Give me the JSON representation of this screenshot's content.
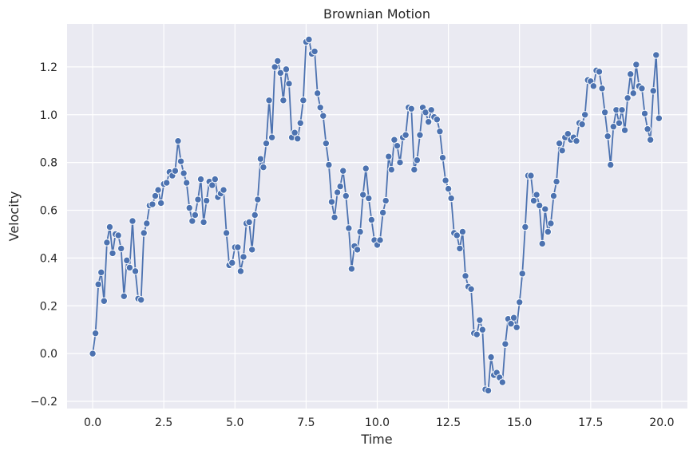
{
  "chart_data": {
    "type": "line",
    "title": "Brownian Motion",
    "xlabel": "Time",
    "ylabel": "Velocity",
    "xlim": [
      -0.9,
      20.9
    ],
    "ylim": [
      -0.23,
      1.38
    ],
    "xticks": [
      0.0,
      2.5,
      5.0,
      7.5,
      10.0,
      12.5,
      15.0,
      17.5,
      20.0
    ],
    "xtick_labels": [
      "0.0",
      "2.5",
      "5.0",
      "7.5",
      "10.0",
      "12.5",
      "15.0",
      "17.5",
      "20.0"
    ],
    "yticks": [
      -0.2,
      0.0,
      0.2,
      0.4,
      0.6,
      0.8,
      1.0,
      1.2
    ],
    "ytick_labels": [
      "−0.2",
      "0.0",
      "0.2",
      "0.4",
      "0.6",
      "0.8",
      "1.0",
      "1.2"
    ],
    "grid": true,
    "line_color": "#4c72b0",
    "background_color": "#eaeaf2",
    "x": [
      0,
      0.1,
      0.2,
      0.3,
      0.4,
      0.5,
      0.6,
      0.7,
      0.8,
      0.9,
      1.0,
      1.1,
      1.2,
      1.3,
      1.4,
      1.5,
      1.6,
      1.7,
      1.8,
      1.9,
      2.0,
      2.1,
      2.2,
      2.3,
      2.4,
      2.5,
      2.6,
      2.7,
      2.8,
      2.9,
      3.0,
      3.1,
      3.2,
      3.3,
      3.4,
      3.5,
      3.6,
      3.7,
      3.8,
      3.9,
      4.0,
      4.1,
      4.2,
      4.3,
      4.4,
      4.5,
      4.6,
      4.7,
      4.8,
      4.9,
      5.0,
      5.1,
      5.2,
      5.3,
      5.4,
      5.5,
      5.6,
      5.7,
      5.8,
      5.9,
      6.0,
      6.1,
      6.2,
      6.3,
      6.4,
      6.5,
      6.6,
      6.7,
      6.8,
      6.9,
      7.0,
      7.1,
      7.2,
      7.3,
      7.4,
      7.5,
      7.6,
      7.7,
      7.8,
      7.9,
      8.0,
      8.1,
      8.2,
      8.3,
      8.4,
      8.5,
      8.6,
      8.7,
      8.8,
      8.9,
      9.0,
      9.1,
      9.2,
      9.3,
      9.4,
      9.5,
      9.6,
      9.7,
      9.8,
      9.9,
      10.0,
      10.1,
      10.2,
      10.3,
      10.4,
      10.5,
      10.6,
      10.7,
      10.8,
      10.9,
      11.0,
      11.1,
      11.2,
      11.3,
      11.4,
      11.5,
      11.6,
      11.7,
      11.8,
      11.9,
      12.0,
      12.1,
      12.2,
      12.3,
      12.4,
      12.5,
      12.6,
      12.7,
      12.8,
      12.9,
      13.0,
      13.1,
      13.2,
      13.3,
      13.4,
      13.5,
      13.6,
      13.7,
      13.8,
      13.9,
      14.0,
      14.1,
      14.2,
      14.3,
      14.4,
      14.5,
      14.6,
      14.7,
      14.8,
      14.9,
      15.0,
      15.1,
      15.2,
      15.3,
      15.4,
      15.5,
      15.6,
      15.7,
      15.8,
      15.9,
      16.0,
      16.1,
      16.2,
      16.3,
      16.4,
      16.5,
      16.6,
      16.7,
      16.8,
      16.9,
      17.0,
      17.1,
      17.2,
      17.3,
      17.4,
      17.5,
      17.6,
      17.7,
      17.8,
      17.9,
      18.0,
      18.1,
      18.2,
      18.3,
      18.4,
      18.5,
      18.6,
      18.7,
      18.8,
      18.9,
      19.0,
      19.1,
      19.2,
      19.3,
      19.4,
      19.5,
      19.6,
      19.7,
      19.8,
      19.9
    ],
    "y": [
      0.0,
      0.085,
      0.29,
      0.34,
      0.22,
      0.465,
      0.53,
      0.42,
      0.5,
      0.495,
      0.44,
      0.24,
      0.39,
      0.36,
      0.555,
      0.345,
      0.23,
      0.225,
      0.505,
      0.545,
      0.62,
      0.625,
      0.66,
      0.685,
      0.63,
      0.71,
      0.715,
      0.76,
      0.745,
      0.765,
      0.89,
      0.805,
      0.755,
      0.715,
      0.61,
      0.555,
      0.58,
      0.645,
      0.73,
      0.55,
      0.64,
      0.72,
      0.705,
      0.73,
      0.655,
      0.67,
      0.685,
      0.505,
      0.37,
      0.38,
      0.445,
      0.445,
      0.345,
      0.405,
      0.545,
      0.55,
      0.435,
      0.58,
      0.645,
      0.815,
      0.78,
      0.88,
      1.06,
      0.905,
      1.2,
      1.225,
      1.175,
      1.06,
      1.19,
      1.13,
      0.905,
      0.925,
      0.9,
      0.965,
      1.06,
      1.305,
      1.315,
      1.255,
      1.265,
      1.09,
      1.03,
      0.995,
      0.88,
      0.79,
      0.635,
      0.57,
      0.675,
      0.7,
      0.765,
      0.66,
      0.525,
      0.355,
      0.45,
      0.435,
      0.51,
      0.665,
      0.775,
      0.65,
      0.56,
      0.475,
      0.455,
      0.475,
      0.59,
      0.64,
      0.825,
      0.77,
      0.895,
      0.87,
      0.8,
      0.905,
      0.915,
      1.03,
      1.025,
      0.77,
      0.81,
      0.915,
      1.03,
      1.01,
      0.97,
      1.02,
      0.99,
      0.98,
      0.93,
      0.82,
      0.725,
      0.69,
      0.65,
      0.505,
      0.495,
      0.44,
      0.51,
      0.325,
      0.28,
      0.27,
      0.085,
      0.08,
      0.14,
      0.1,
      -0.15,
      -0.155,
      -0.015,
      -0.09,
      -0.08,
      -0.1,
      -0.12,
      0.04,
      0.145,
      0.125,
      0.15,
      0.11,
      0.215,
      0.335,
      0.53,
      0.745,
      0.745,
      0.64,
      0.665,
      0.62,
      0.46,
      0.605,
      0.51,
      0.545,
      0.66,
      0.72,
      0.88,
      0.85,
      0.905,
      0.92,
      0.895,
      0.905,
      0.89,
      0.965,
      0.96,
      1.0,
      1.145,
      1.14,
      1.12,
      1.185,
      1.18,
      1.11,
      1.01,
      0.91,
      0.79,
      0.95,
      1.02,
      0.965,
      1.02,
      0.935,
      1.07,
      1.17,
      1.09,
      1.21,
      1.12,
      1.11,
      1.005,
      0.94,
      0.895,
      1.1,
      1.25,
      0.985
    ]
  }
}
